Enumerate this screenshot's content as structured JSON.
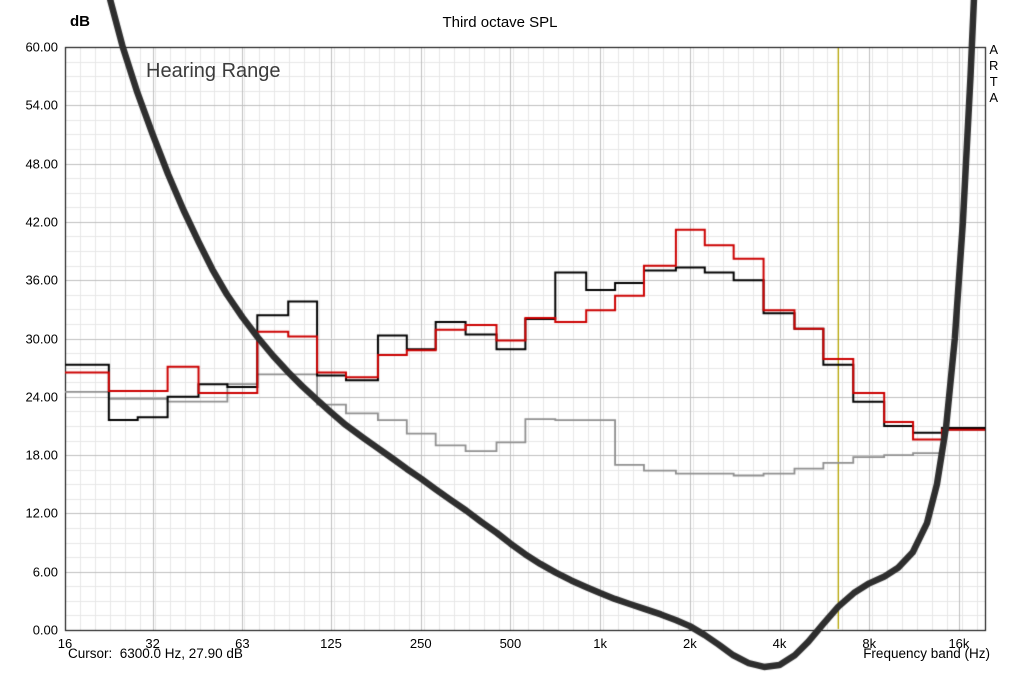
{
  "window": {
    "background": "#ffffff"
  },
  "header": {
    "y_unit_label": "dB",
    "title": "Third octave SPL",
    "brand_letters": [
      "A",
      "R",
      "T",
      "A"
    ]
  },
  "status_bar": {
    "cursor_readout": "Cursor:  6300.0 Hz, 27.90 dB",
    "x_axis_label": "Frequency band (Hz)"
  },
  "chart_data": {
    "type": "line",
    "subtype": "third-octave-step-spl",
    "title": "Third octave SPL",
    "ylabel": "dB",
    "xlabel": "Frequency band (Hz)",
    "x_scale": "log",
    "ylim": [
      0,
      60
    ],
    "xlim_hz": [
      16,
      19400
    ],
    "y_major_step_db": 6,
    "y_minor_step_db": 1.5,
    "y_tick_labels": [
      "60.00",
      "54.00",
      "48.00",
      "42.00",
      "36.00",
      "30.00",
      "24.00",
      "18.00",
      "12.00",
      "6.00",
      "0.00"
    ],
    "x_ticks": [
      {
        "hz": 16,
        "label": "16"
      },
      {
        "hz": 31.5,
        "label": "32"
      },
      {
        "hz": 63,
        "label": "63"
      },
      {
        "hz": 125,
        "label": "125"
      },
      {
        "hz": 250,
        "label": "250"
      },
      {
        "hz": 500,
        "label": "500"
      },
      {
        "hz": 1000,
        "label": "1k"
      },
      {
        "hz": 2000,
        "label": "2k"
      },
      {
        "hz": 4000,
        "label": "4k"
      },
      {
        "hz": 8000,
        "label": "8k"
      },
      {
        "hz": 16000,
        "label": "16k"
      }
    ],
    "annotation": {
      "text": "Hearing Range",
      "color": "#3b3b3b"
    },
    "cursor": {
      "hz": 6300.0,
      "db": 27.9,
      "color": "#b4a400"
    },
    "grid": {
      "on": true,
      "minor_color": "#e7e7e7",
      "major_color": "#bfbfbf",
      "border_color": "#1a1a1a"
    },
    "bands_hz": [
      20,
      25,
      31.5,
      40,
      50,
      63,
      80,
      100,
      125,
      160,
      200,
      250,
      315,
      400,
      500,
      630,
      800,
      1000,
      1250,
      1600,
      2000,
      2500,
      3150,
      4000,
      5000,
      6300,
      8000,
      10000,
      12500,
      16000
    ],
    "series": [
      {
        "name": "gray-curve",
        "type": "steps",
        "color": "#8f8f8f",
        "width": 1.8,
        "values_db": [
          24.5,
          23.8,
          23.8,
          23.5,
          23.5,
          25.3,
          26.3,
          26.3,
          23.2,
          22.3,
          21.6,
          20.2,
          19.0,
          18.4,
          19.3,
          21.7,
          21.6,
          21.6,
          17.0,
          16.4,
          16.1,
          16.1,
          15.9,
          16.1,
          16.6,
          17.2,
          17.8,
          18.0,
          18.2,
          20.6
        ]
      },
      {
        "name": "black-curve",
        "type": "steps",
        "color": "#000000",
        "width": 2,
        "values_db": [
          27.3,
          21.6,
          21.9,
          24.0,
          25.3,
          25.0,
          32.4,
          33.8,
          26.2,
          25.7,
          30.3,
          28.9,
          31.7,
          30.4,
          28.9,
          32.0,
          36.8,
          35.0,
          35.7,
          37.0,
          37.3,
          36.8,
          36.0,
          32.6,
          31.0,
          27.3,
          23.5,
          21.0,
          20.3,
          20.8
        ]
      },
      {
        "name": "red-curve",
        "type": "steps",
        "color": "#cc0000",
        "width": 2,
        "values_db": [
          26.5,
          24.6,
          24.6,
          27.1,
          24.4,
          24.4,
          30.7,
          30.2,
          26.5,
          26.0,
          28.3,
          28.8,
          30.9,
          31.4,
          29.8,
          32.1,
          31.7,
          32.9,
          34.4,
          37.5,
          41.2,
          39.6,
          38.2,
          32.9,
          31.0,
          27.9,
          24.4,
          21.4,
          19.6,
          20.6
        ]
      },
      {
        "name": "hearing-threshold-curve",
        "type": "smooth",
        "color": "#2e2e2e",
        "width": 6.5,
        "points_hz_db": [
          [
            16,
            86
          ],
          [
            18,
            78
          ],
          [
            20,
            71.5
          ],
          [
            22.4,
            65.5
          ],
          [
            25,
            60
          ],
          [
            28,
            55.3
          ],
          [
            31.5,
            51
          ],
          [
            35.5,
            46.9
          ],
          [
            40,
            43.2
          ],
          [
            45,
            39.9
          ],
          [
            50,
            37.1
          ],
          [
            56,
            34.5
          ],
          [
            63,
            32.2
          ],
          [
            71,
            30.1
          ],
          [
            80,
            28.2
          ],
          [
            90,
            26.5
          ],
          [
            100,
            25.1
          ],
          [
            112,
            23.7
          ],
          [
            125,
            22.4
          ],
          [
            140,
            21.1
          ],
          [
            160,
            19.8
          ],
          [
            180,
            18.7
          ],
          [
            200,
            17.7
          ],
          [
            224,
            16.6
          ],
          [
            250,
            15.6
          ],
          [
            280,
            14.5
          ],
          [
            315,
            13.4
          ],
          [
            355,
            12.3
          ],
          [
            400,
            11.1
          ],
          [
            450,
            10.0
          ],
          [
            500,
            8.9
          ],
          [
            560,
            7.8
          ],
          [
            630,
            6.8
          ],
          [
            710,
            5.9
          ],
          [
            800,
            5.1
          ],
          [
            900,
            4.4
          ],
          [
            1000,
            3.8
          ],
          [
            1120,
            3.2
          ],
          [
            1250,
            2.7
          ],
          [
            1400,
            2.2
          ],
          [
            1600,
            1.6
          ],
          [
            1800,
            1.0
          ],
          [
            2000,
            0.4
          ],
          [
            2240,
            -0.5
          ],
          [
            2500,
            -1.5
          ],
          [
            2800,
            -2.6
          ],
          [
            3150,
            -3.4
          ],
          [
            3550,
            -3.8
          ],
          [
            4000,
            -3.6
          ],
          [
            4500,
            -2.6
          ],
          [
            5000,
            -1.2
          ],
          [
            5600,
            0.6
          ],
          [
            6300,
            2.4
          ],
          [
            7100,
            3.8
          ],
          [
            8000,
            4.8
          ],
          [
            9000,
            5.5
          ],
          [
            10000,
            6.4
          ],
          [
            11200,
            8.0
          ],
          [
            12500,
            11.0
          ],
          [
            13500,
            15.0
          ],
          [
            14500,
            21.0
          ],
          [
            15500,
            30.0
          ],
          [
            16500,
            42.0
          ],
          [
            17500,
            57.0
          ],
          [
            18400,
            72.0
          ]
        ]
      }
    ]
  }
}
